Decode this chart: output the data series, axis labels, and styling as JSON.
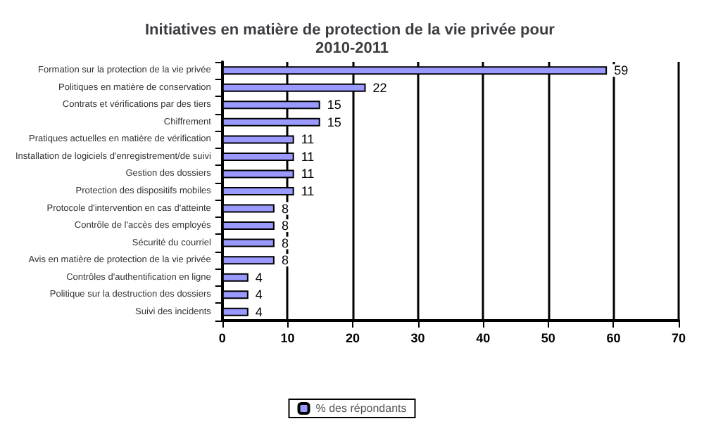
{
  "chart_data": {
    "type": "bar",
    "orientation": "horizontal",
    "title": "Initiatives en matière de protection de la vie privée pour 2010-2011",
    "categories": [
      "Formation sur la protection de la vie privée",
      "Politiques en matière de conservation",
      "Contrats et vérifications par des tiers",
      "Chiffrement",
      "Pratiques actuelles en matière de vérification",
      "Installation de logiciels d'enregistrement/de suivi",
      "Gestion des dossiers",
      "Protection des dispositifs mobiles",
      "Protocole d'intervention en cas d'atteinte",
      "Contrôle de l'accès des employés",
      "Sécurité du courriel",
      "Avis en matière de protection de la vie privée",
      "Contrôles d'authentification en ligne",
      "Politique sur la destruction des dossiers",
      "Suivi des incidents"
    ],
    "series": [
      {
        "name": "% des répondants",
        "color": "#9999ff",
        "values": [
          59,
          22,
          15,
          15,
          11,
          11,
          11,
          11,
          8,
          8,
          8,
          8,
          4,
          4,
          4
        ]
      }
    ],
    "xlim": [
      0,
      70
    ],
    "xticks": [
      0,
      10,
      20,
      30,
      40,
      50,
      60,
      70
    ],
    "grid": "x",
    "legend": "bottom",
    "data_labels": true
  }
}
